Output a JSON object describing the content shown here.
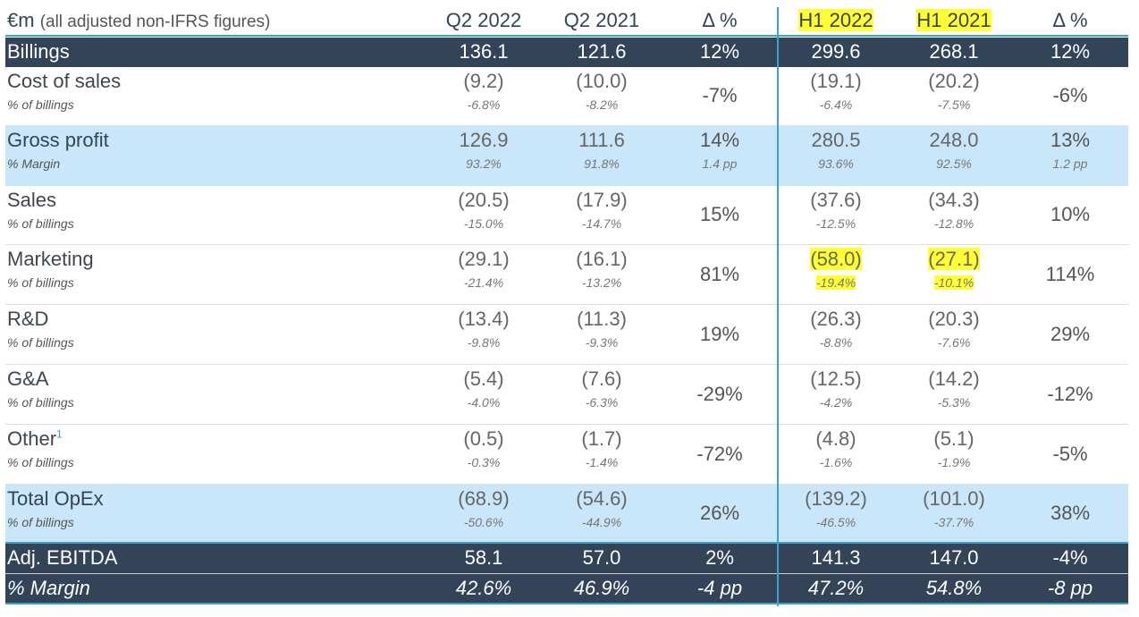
{
  "header": {
    "unit": "€m",
    "note": "(all adjusted non-IFRS figures)",
    "cols": [
      "Q2 2022",
      "Q2 2021",
      "Δ %",
      "H1 2022",
      "H1 2021",
      "Δ %"
    ]
  },
  "rows": [
    {
      "label": "Billings",
      "style": "dark",
      "values": [
        "136.1",
        "121.6",
        "12%",
        "299.6",
        "268.1",
        "12%"
      ]
    },
    {
      "label": "Cost of sales",
      "sub": "% of billings",
      "values": [
        "(9.2)",
        "(10.0)",
        "-7%",
        "(19.1)",
        "(20.2)",
        "-6%"
      ],
      "pct": [
        "-6.8%",
        "-8.2%",
        "",
        "-6.4%",
        "-7.5%",
        ""
      ]
    },
    {
      "label": "Gross profit",
      "bold": true,
      "sub": "% Margin",
      "style": "blue",
      "values": [
        "126.9",
        "111.6",
        "14%",
        "280.5",
        "248.0",
        "13%"
      ],
      "pct": [
        "93.2%",
        "91.8%",
        "1.4 pp",
        "93.6%",
        "92.5%",
        "1.2 pp"
      ]
    },
    {
      "label": "Sales",
      "sub": "% of billings",
      "values": [
        "(20.5)",
        "(17.9)",
        "15%",
        "(37.6)",
        "(34.3)",
        "10%"
      ],
      "pct": [
        "-15.0%",
        "-14.7%",
        "",
        "-12.5%",
        "-12.8%",
        ""
      ]
    },
    {
      "label": "Marketing",
      "sub": "% of billings",
      "highlight": true,
      "values": [
        "(29.1)",
        "(16.1)",
        "81%",
        "(58.0)",
        "(27.1)",
        "114%"
      ],
      "pct": [
        "-21.4%",
        "-13.2%",
        "",
        "-19.4%",
        "-10.1%",
        ""
      ]
    },
    {
      "label": "R&D",
      "sub": "% of billings",
      "values": [
        "(13.4)",
        "(11.3)",
        "19%",
        "(26.3)",
        "(20.3)",
        "29%"
      ],
      "pct": [
        "-9.8%",
        "-9.3%",
        "",
        "-8.8%",
        "-7.6%",
        ""
      ]
    },
    {
      "label": "G&A",
      "sub": "% of billings",
      "values": [
        "(5.4)",
        "(7.6)",
        "-29%",
        "(12.5)",
        "(14.2)",
        "-12%"
      ],
      "pct": [
        "-4.0%",
        "-6.3%",
        "",
        "-4.2%",
        "-5.3%",
        ""
      ]
    },
    {
      "label": "Other",
      "footnote": "1",
      "sub": "% of billings",
      "values": [
        "(0.5)",
        "(1.7)",
        "-72%",
        "(4.8)",
        "(5.1)",
        "-5%"
      ],
      "pct": [
        "-0.3%",
        "-1.4%",
        "",
        "-1.6%",
        "-1.9%",
        ""
      ]
    },
    {
      "label": "Total OpEx",
      "bold": true,
      "sub": "% of billings",
      "style": "blue",
      "values": [
        "(68.9)",
        "(54.6)",
        "26%",
        "(139.2)",
        "(101.0)",
        "38%"
      ],
      "pct": [
        "-50.6%",
        "-44.9%",
        "",
        "-46.5%",
        "-37.7%",
        ""
      ]
    },
    {
      "label": "Adj. EBITDA",
      "style": "dark",
      "values": [
        "58.1",
        "57.0",
        "2%",
        "141.3",
        "147.0",
        "-4%"
      ]
    },
    {
      "label": "% Margin",
      "style": "dark",
      "italic": true,
      "values": [
        "42.6%",
        "46.9%",
        "-4 pp",
        "47.2%",
        "54.8%",
        "-8 pp"
      ]
    }
  ]
}
